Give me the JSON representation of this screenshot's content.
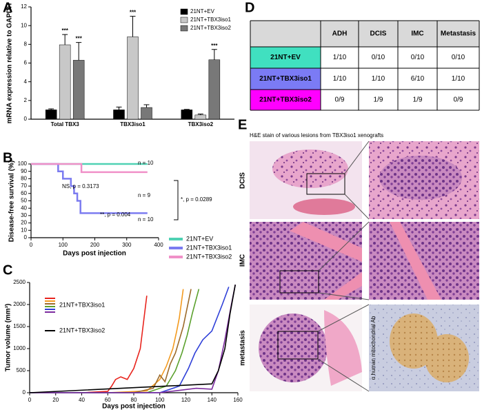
{
  "panel_labels": [
    "A",
    "B",
    "C",
    "D",
    "E"
  ],
  "chart_data": [
    {
      "type": "bar",
      "y_label": "mRNA expression relative to GAPDH",
      "categories": [
        "Total TBX3",
        "TBX3iso1",
        "TBX3iso2"
      ],
      "series": [
        {
          "name": "21NT+EV",
          "color": "#000000",
          "values": [
            1,
            1,
            1
          ],
          "errors": [
            0.1,
            0.3,
            0.05
          ],
          "significance": [
            null,
            null,
            null
          ]
        },
        {
          "name": "21NT+TBX3iso1",
          "color": "#c8c8c8",
          "values": [
            7.95,
            8.8,
            0.45
          ],
          "errors": [
            1.1,
            2.2,
            0.1
          ],
          "significance": [
            "***",
            "***",
            null
          ]
        },
        {
          "name": "21NT+TBX3iso2",
          "color": "#787878",
          "values": [
            6.3,
            1.25,
            6.35
          ],
          "errors": [
            1.9,
            0.3,
            1.1
          ],
          "significance": [
            "***",
            null,
            "***"
          ]
        }
      ],
      "ylim": [
        0,
        12
      ],
      "yticks": [
        0,
        2,
        4,
        6,
        8,
        10,
        12
      ]
    },
    {
      "type": "step",
      "y_label": "Disease-free survival (%)",
      "x_label": "Days post injection",
      "series": [
        {
          "name": "21NT+EV",
          "color": "#4fd1b3",
          "x": [
            0,
            365
          ],
          "values": [
            100,
            100
          ]
        },
        {
          "name": "21NT+TBX3iso1",
          "color": "#7b7bf0",
          "x": [
            0,
            85,
            85,
            100,
            100,
            125,
            125,
            135,
            135,
            145,
            145,
            155,
            155,
            365
          ],
          "values": [
            100,
            100,
            90,
            90,
            80,
            80,
            70,
            70,
            60,
            60,
            50,
            50,
            33.3,
            33.3
          ]
        },
        {
          "name": "21NT+TBX3iso2",
          "color": "#f090c8",
          "x": [
            0,
            158,
            158,
            365
          ],
          "values": [
            100,
            100,
            88.9,
            88.9
          ]
        }
      ],
      "annotations": [
        "n = 10",
        "NS, p = 0.3173",
        "n = 9",
        "**, p = 0.004",
        "n = 10",
        "*, p = 0.0289"
      ],
      "xlim": [
        0,
        400
      ],
      "xticks": [
        0,
        100,
        200,
        300,
        400
      ],
      "ylim": [
        0,
        100
      ],
      "yticks": [
        0,
        10,
        20,
        30,
        40,
        50,
        60,
        70,
        80,
        90,
        100
      ]
    },
    {
      "type": "line",
      "y_label": "Tumor volume (mm³)",
      "x_label": "Days post injection",
      "legend": [
        {
          "label": "21NT+TBX3iso1",
          "colors": [
            "#e8231c",
            "#f39a1e",
            "#9c6a2a",
            "#5aa02c",
            "#2e3fd8",
            "#7b2a9e"
          ]
        },
        {
          "label": "21NT+TBX3iso2",
          "colors": [
            "#000000"
          ]
        }
      ],
      "series": [
        {
          "color": "#e8231c",
          "x": [
            0,
            40,
            60,
            63,
            66,
            70,
            75,
            80,
            85,
            90
          ],
          "values": [
            0,
            0,
            30,
            150,
            300,
            360,
            300,
            550,
            1000,
            2200
          ]
        },
        {
          "color": "#f39a1e",
          "x": [
            0,
            60,
            90,
            100,
            105,
            110,
            113,
            115,
            118
          ],
          "values": [
            0,
            0,
            40,
            300,
            600,
            1000,
            1400,
            1700,
            2350
          ]
        },
        {
          "color": "#9c6a2a",
          "x": [
            0,
            80,
            95,
            100,
            104,
            108,
            112,
            118,
            124
          ],
          "values": [
            0,
            0,
            100,
            400,
            250,
            650,
            900,
            1500,
            2350
          ]
        },
        {
          "color": "#5aa02c",
          "x": [
            0,
            90,
            105,
            112,
            117,
            121,
            125,
            130
          ],
          "values": [
            0,
            0,
            150,
            500,
            900,
            1300,
            1800,
            2350
          ]
        },
        {
          "color": "#2e3fd8",
          "x": [
            0,
            100,
            115,
            122,
            127,
            133,
            140,
            148,
            153
          ],
          "values": [
            0,
            0,
            150,
            550,
            900,
            1200,
            1400,
            2000,
            2400
          ]
        },
        {
          "color": "#7b2a9e",
          "x": [
            0,
            100,
            128,
            140,
            145,
            150,
            155,
            158
          ],
          "values": [
            0,
            0,
            100,
            80,
            500,
            1200,
            2000,
            2450
          ]
        },
        {
          "color": "#000000",
          "x": [
            0,
            140,
            145,
            150,
            154,
            158
          ],
          "values": [
            0,
            200,
            500,
            1000,
            1800,
            2450
          ]
        }
      ],
      "xlim": [
        0,
        160
      ],
      "xticks": [
        0,
        20,
        40,
        60,
        80,
        100,
        120,
        140,
        160
      ],
      "ylim": [
        0,
        2500
      ],
      "yticks": [
        0,
        500,
        1000,
        1500,
        2000,
        2500
      ]
    }
  ],
  "table": {
    "header": [
      "ADH",
      "DCIS",
      "IMC",
      "Metastasis"
    ],
    "row_colors": [
      "#40e0c0",
      "#7b7bf5",
      "#ff00ff"
    ],
    "rows": [
      [
        "21NT+EV",
        "1/10",
        "0/10",
        "0/10",
        "0/10"
      ],
      [
        "21NT+TBX3iso1",
        "1/10",
        "1/10",
        "6/10",
        "1/10"
      ],
      [
        "21NT+TBX3iso2",
        "0/9",
        "1/9",
        "1/9",
        "0/9"
      ]
    ]
  },
  "histology": {
    "caption": "H&E stain of various lesions from TBX3iso1 xenografts",
    "row_labels": [
      "DCIS",
      "IMC",
      "metastasis"
    ],
    "stain_label": "α human mitochondrial Ab"
  }
}
